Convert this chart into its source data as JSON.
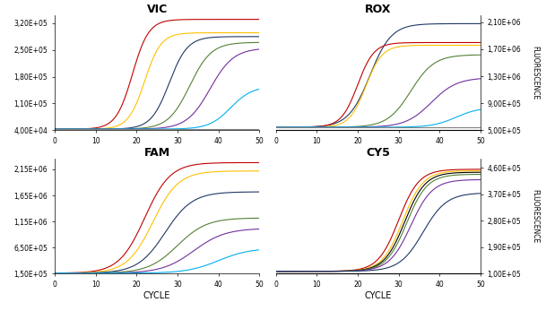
{
  "panels": [
    "VIC",
    "ROX",
    "FAM",
    "CY5"
  ],
  "colors_VIC": [
    "#c00000",
    "#ffc000",
    "#1f3864",
    "#538135",
    "#7030a0",
    "#00b0f0",
    "#808080"
  ],
  "colors_ROX": [
    "#1f3864",
    "#c00000",
    "#ffc000",
    "#538135",
    "#7030a0",
    "#00b0f0",
    "#808080"
  ],
  "colors_FAM": [
    "#c00000",
    "#ffc000",
    "#1f3864",
    "#538135",
    "#7030a0",
    "#00b0f0",
    "#808080"
  ],
  "colors_CY5": [
    "#c00000",
    "#ffc000",
    "#000000",
    "#538135",
    "#7030a0",
    "#1f3864"
  ],
  "xlim": [
    0,
    50
  ],
  "xticks": [
    0,
    10,
    20,
    30,
    40,
    50
  ],
  "VIC": {
    "ylim": [
      40000,
      340000
    ],
    "yticks": [
      40000,
      110000,
      180000,
      250000,
      320000
    ],
    "yticklabels": [
      "4,00E+04",
      "1,10E+05",
      "1,80E+05",
      "2,50E+05",
      "3,20E+05"
    ],
    "baseline": 43000,
    "plateau": [
      330000,
      295000,
      285000,
      270000,
      255000,
      155000,
      43000
    ],
    "midpoints": [
      19,
      22,
      28,
      33,
      38,
      43,
      999
    ],
    "steepness": [
      0.5,
      0.5,
      0.45,
      0.38,
      0.35,
      0.38,
      0.3
    ]
  },
  "ROX": {
    "ylim": [
      500000,
      2200000
    ],
    "yticks": [
      500000,
      900000,
      1300000,
      1700000,
      2100000
    ],
    "yticklabels": [
      "5,00E+05",
      "9,00E+05",
      "1,30E+06",
      "1,70E+06",
      "2,10E+06"
    ],
    "baseline": 545000,
    "plateau": [
      2080000,
      1800000,
      1760000,
      1620000,
      1280000,
      840000,
      580000
    ],
    "midpoints": [
      23,
      20,
      22,
      33,
      38,
      44,
      999
    ],
    "steepness": [
      0.38,
      0.5,
      0.5,
      0.35,
      0.32,
      0.35,
      0.3
    ]
  },
  "FAM": {
    "ylim": [
      150000,
      2350000
    ],
    "yticks": [
      150000,
      650000,
      1150000,
      1650000,
      2150000
    ],
    "yticklabels": [
      "1,50E+05",
      "6,50E+05",
      "1,15E+06",
      "1,65E+06",
      "2,15E+06"
    ],
    "baseline": 160000,
    "plateau": [
      2280000,
      2120000,
      1720000,
      1220000,
      1020000,
      640000,
      165000
    ],
    "midpoints": [
      22,
      24,
      27,
      30,
      34,
      40,
      999
    ],
    "steepness": [
      0.32,
      0.32,
      0.3,
      0.28,
      0.26,
      0.26,
      0.3
    ]
  },
  "CY5": {
    "ylim": [
      100000,
      490000
    ],
    "yticks": [
      100000,
      190000,
      280000,
      370000,
      460000
    ],
    "yticklabels": [
      "1,00E+05",
      "1,90E+05",
      "2,80E+05",
      "3,70E+05",
      "4,60E+05"
    ],
    "baseline": 108000,
    "plateau": [
      455000,
      450000,
      445000,
      438000,
      420000,
      375000
    ],
    "midpoints": [
      30,
      31,
      31.5,
      32,
      33,
      36
    ],
    "steepness": [
      0.4,
      0.4,
      0.4,
      0.4,
      0.38,
      0.35
    ]
  }
}
